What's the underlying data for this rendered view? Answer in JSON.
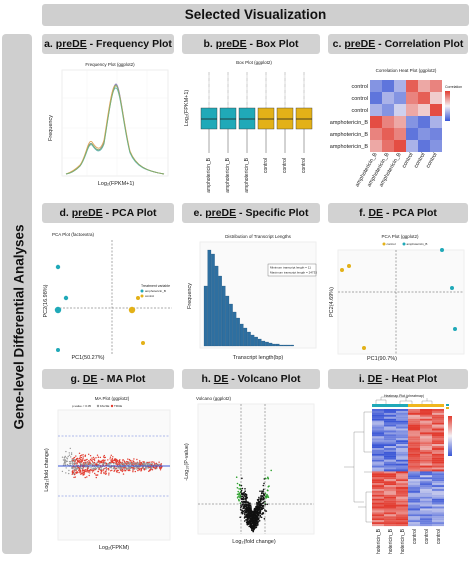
{
  "header": {
    "title": "Selected Visualization"
  },
  "sidebar": {
    "label": "Gene-level Differential Analyses"
  },
  "panels": [
    {
      "letter": "a.",
      "prefix": "preDE",
      "title": " - Frequency Plot",
      "plot_title": "Frequency Plot (ggplot2)",
      "xlabel": "Log₂(FPKM+1)",
      "ylabel": "Frequency"
    },
    {
      "letter": "b.",
      "prefix": "preDE",
      "title": " - Box Plot",
      "plot_title": "Box Plot (ggplot2)",
      "ylabel": "Log₂(FPKM+1)",
      "categories": [
        "amphotericin_B",
        "amphotericin_B",
        "amphotericin_B",
        "control",
        "control",
        "control"
      ]
    },
    {
      "letter": "c.",
      "prefix": "preDE",
      "title": " - Correlation Plot",
      "plot_title": "Correlation Heat Plot (ggplot2)",
      "rows": [
        "control",
        "control",
        "control",
        "amphotericin_B",
        "amphotericin_B",
        "amphotericin_B"
      ],
      "cols": [
        "amphotericin_B",
        "amphotericin_B",
        "amphotericin_B",
        "control",
        "control",
        "control"
      ],
      "legend_title": "Correlation"
    },
    {
      "letter": "d.",
      "prefix": "preDE",
      "title": " - PCA Plot",
      "plot_title": "PCA Plot (factoextra)",
      "xlabel": "PC1(50.27%)",
      "ylabel": "PC2(16.98%)",
      "legend_title": "Treatment variable",
      "legend_items": [
        "amphotericin_B",
        "control"
      ]
    },
    {
      "letter": "e.",
      "prefix": "preDE",
      "title": " - Specific Plot",
      "plot_title": "Distribution of Transcript Lengths",
      "xlabel": "Transcript length(bp)",
      "ylabel": "Frequency",
      "annotation": [
        "Minimum transcript length = 11",
        "Maximum transcript length = 24733"
      ]
    },
    {
      "letter": "f.",
      "prefix": "DE",
      "title": " - PCA Plot",
      "plot_title": "PCA Plot (ggplot2)",
      "xlabel": "PC1(90.7%)",
      "ylabel": "PC2(4.69%)",
      "legend_items": [
        "amphotericin_B",
        "control"
      ]
    },
    {
      "letter": "g.",
      "prefix": "DE",
      "title": " - MA Plot",
      "plot_title": "MA Plot (ggplot2)",
      "xlabel": "Log₂(FPKM)",
      "ylabel": "Log₂(fold change)",
      "legend_items": [
        "p-value < 0.05",
        "FALSE",
        "TRUE"
      ]
    },
    {
      "letter": "h.",
      "prefix": "DE",
      "title": " - Volcano Plot",
      "plot_title": "Volcano (ggplot2)",
      "xlabel": "Log₂(fold change)",
      "ylabel": "-Log₁₀(P-value)"
    },
    {
      "letter": "i.",
      "prefix": "DE",
      "title": " - Heat Plot",
      "plot_title": "Heatmap Plot (pheatmap)",
      "cols": [
        "amphotericin_B",
        "amphotericin_B",
        "amphotericin_B",
        "control",
        "control",
        "control"
      ]
    }
  ],
  "colors": {
    "teal": "#20a9b8",
    "gold": "#e3b118",
    "red": "#e23b2f",
    "blue": "#3a56d6",
    "green": "#2ca02c",
    "bar": "#2e6fa0",
    "banner": "#cfcfcf"
  }
}
